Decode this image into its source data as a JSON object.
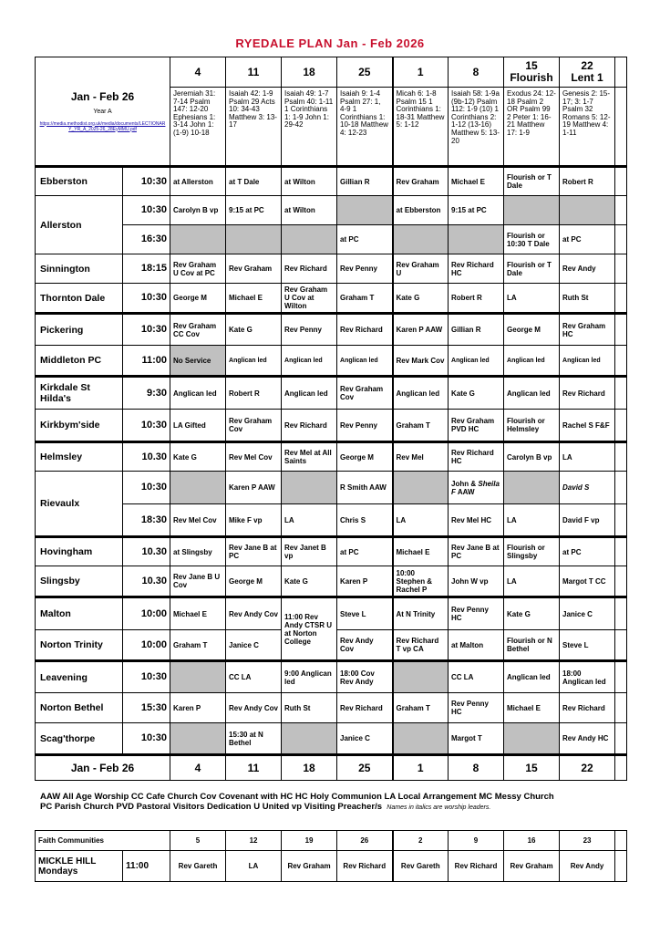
{
  "title": "RYEDALE PLAN Jan - Feb 2026",
  "period": {
    "label": "Jan - Feb 26",
    "year": "Year A",
    "link": "https://media.methodist.org.uk/media/documents/LECTIONARY_YR_A_2025-26_28EyMMU.pdf"
  },
  "dates": [
    {
      "day": "4",
      "sub": ""
    },
    {
      "day": "11",
      "sub": ""
    },
    {
      "day": "18",
      "sub": ""
    },
    {
      "day": "25",
      "sub": ""
    },
    {
      "day": "1",
      "sub": ""
    },
    {
      "day": "8",
      "sub": ""
    },
    {
      "day": "15",
      "sub": "Flourish"
    },
    {
      "day": "22",
      "sub": "Lent 1"
    }
  ],
  "lectionary": [
    "Jeremiah 31: 7-14 Psalm 147: 12-20 Ephesians 1: 3-14 John 1: (1-9) 10-18",
    "Isaiah 42: 1-9 Psalm 29 Acts 10: 34-43 Matthew 3: 13-17",
    "Isaiah 49: 1-7 Psalm 40: 1-11 1 Corinthians 1: 1-9 John 1: 29-42",
    "Isaiah 9: 1-4 Psalm 27: 1, 4-9 1 Corinthians 1: 10-18 Matthew 4: 12-23",
    "Micah 6: 1-8 Psalm 15 1 Corinthians 1: 18-31 Matthew 5: 1-12",
    "Isaiah 58: 1-9a (9b-12) Psalm 112: 1-9 (10) 1 Corinthians 2: 1-12 (13-16) Matthew 5: 13-20",
    "Exodus 24: 12-18 Psalm 2 OR Psalm 99 2 Peter 1: 16-21 Matthew 17: 1-9",
    "Genesis 2: 15-17; 3: 1-7 Psalm 32 Romans 5: 12-19 Matthew 4: 1-11"
  ],
  "rows": [
    {
      "church": "Ebberston",
      "time": "10:30",
      "cells": [
        "at Allerston",
        "at T Dale",
        "at Wilton",
        "Gillian R",
        "Rev Graham",
        "Michael E",
        "Flourish or T Dale",
        "Robert R"
      ]
    },
    {
      "church": "Allerston",
      "church_rowspan": 2,
      "time": "10:30",
      "cells": [
        "Carolyn B vp",
        "9:15 at PC",
        "at Wilton",
        {
          "t": "",
          "grey": true
        },
        "at Ebberston",
        "9:15 at PC",
        {
          "t": "",
          "grey": true
        },
        {
          "t": "",
          "grey": true
        }
      ]
    },
    {
      "church": null,
      "time": "16:30",
      "cells": [
        {
          "t": "",
          "grey": true
        },
        {
          "t": "",
          "grey": true
        },
        {
          "t": "",
          "grey": true
        },
        "at PC",
        {
          "t": "",
          "grey": true
        },
        {
          "t": "",
          "grey": true
        },
        "Flourish or 10:30 T Dale",
        "at PC"
      ]
    },
    {
      "church": "Sinnington",
      "time": "18:15",
      "cells": [
        "Rev Graham U Cov at PC",
        "Rev Graham",
        "Rev Richard",
        "Rev Penny",
        "Rev Graham U",
        "Rev Richard HC",
        "Flourish or T Dale",
        "Rev Andy"
      ]
    },
    {
      "church": "Thornton Dale",
      "time": "10:30",
      "cells": [
        "George M",
        "Michael E",
        "Rev Graham U Cov at Wilton",
        "Graham T",
        "Kate G",
        "Robert R",
        "LA",
        "Ruth St"
      ]
    },
    {
      "church": "Pickering",
      "time": "10:30",
      "cells": [
        "Rev Graham CC Cov",
        "Kate G",
        "Rev Penny",
        "Rev Richard",
        "Karen P AAW",
        "Gillian R",
        "George M",
        "Rev Graham HC"
      ]
    },
    {
      "church": "Middleton PC",
      "time": "11:00",
      "cells": [
        {
          "t": "No Service",
          "grey": true
        },
        {
          "t": "Anglican led",
          "small": true
        },
        {
          "t": "Anglican led",
          "small": true
        },
        {
          "t": "Anglican led",
          "small": true
        },
        "Rev Mark Cov",
        {
          "t": "Anglican led",
          "small": true
        },
        {
          "t": "Anglican led",
          "small": true
        },
        {
          "t": "Anglican led",
          "small": true
        }
      ]
    },
    {
      "church": "Kirkdale St Hilda's",
      "time": "9:30",
      "cells": [
        "Anglican led",
        "Robert R",
        "Anglican led",
        "Rev Graham Cov",
        "Anglican led",
        "Kate G",
        "Anglican led",
        "Rev Richard"
      ]
    },
    {
      "church": "Kirkbym'side",
      "time": "10:30",
      "cells": [
        "LA Gifted",
        "Rev Graham Cov",
        "Rev Richard",
        "Rev Penny",
        "Graham T",
        "Rev Graham PVD HC",
        "Flourish or Helmsley",
        "Rachel S F&F"
      ]
    },
    {
      "church": "Helmsley",
      "time": "10.30",
      "cells": [
        "Kate G",
        "Rev Mel Cov",
        "Rev Mel at All Saints",
        "George M",
        "Rev Mel",
        "Rev Richard HC",
        "Carolyn B vp",
        "LA"
      ]
    },
    {
      "church": "Rievaulx",
      "church_rowspan": 2,
      "time": "10:30",
      "cells": [
        {
          "t": "",
          "grey": true
        },
        "Karen P AAW",
        {
          "t": "",
          "grey": true
        },
        "R Smith AAW",
        {
          "t": "",
          "grey": true
        },
        {
          "t": "John & ",
          "i": "Sheila F",
          "t2": " AAW"
        },
        {
          "t": "",
          "grey": true
        },
        {
          "t": "David S",
          "italic": true
        }
      ]
    },
    {
      "church": null,
      "time": "18:30",
      "cells": [
        "Rev Mel Cov",
        "Mike F vp",
        "LA",
        "Chris S",
        "LA",
        "Rev Mel HC",
        "LA",
        "David F vp"
      ]
    },
    {
      "church": "Hovingham",
      "time": "10.30",
      "cells": [
        "at Slingsby",
        "Rev Jane B at PC",
        "Rev Janet B vp",
        "at PC",
        "Michael E",
        "Rev Jane B at PC",
        "Flourish or Slingsby",
        "at PC"
      ]
    },
    {
      "church": "Slingsby",
      "time": "10.30",
      "cells": [
        "Rev Jane B U Cov",
        "George M",
        "Kate G",
        "Karen P",
        "10:00 Stephen & Rachel P",
        "John W vp",
        "LA",
        "Margot T CC"
      ]
    },
    {
      "church": "Malton",
      "time": "10:00",
      "cells": [
        "Michael E",
        "Rev Andy Cov",
        {
          "t": "11:00 Rev Andy CTSR U at Norton College",
          "rowspan": 2
        },
        "Steve L",
        "At N Trinity",
        "Rev Penny HC",
        "Kate G",
        "Janice C"
      ]
    },
    {
      "church": "Norton Trinity",
      "time": "10:00",
      "cells": [
        "Graham T",
        "Janice C",
        null,
        "Rev Andy Cov",
        "Rev Richard T vp CA",
        "at Malton",
        "Flourish or N Bethel",
        "Steve L"
      ]
    },
    {
      "church": "Leavening",
      "time": "10:30",
      "cells": [
        {
          "t": "",
          "grey": true
        },
        "CC LA",
        "9:00 Anglican led",
        "18:00 Cov Rev Andy",
        {
          "t": "",
          "grey": true
        },
        "CC LA",
        "Anglican led",
        "18:00 Anglican led"
      ]
    },
    {
      "church": "Norton Bethel",
      "time": "15:30",
      "cells": [
        "Karen P",
        "Rev Andy Cov",
        "Ruth St",
        "Rev Richard",
        "Graham T",
        "Rev Penny HC",
        "Michael E",
        "Rev Richard"
      ]
    },
    {
      "church": "Scag'thorpe",
      "time": "10:30",
      "cells": [
        {
          "t": "",
          "grey": true
        },
        "15:30 at N Bethel",
        {
          "t": "",
          "grey": true
        },
        "Janice C",
        {
          "t": "",
          "grey": true
        },
        "Margot T",
        {
          "t": "",
          "grey": true
        },
        "Rev Andy HC"
      ]
    }
  ],
  "footer": {
    "label": "Jan - Feb 26",
    "days": [
      "4",
      "11",
      "18",
      "25",
      "1",
      "8",
      "15",
      "22"
    ]
  },
  "legend": {
    "line1": "AAW All Age Worship  CC Cafe Church  Cov Covenant with HC  HC Holy Communion  LA Local Arrangement  MC Messy Church",
    "line2": "PC Parish Church  PVD Pastoral Visitors Dedication  U United  vp Visiting Preacher/s",
    "note": "Names in italics are worship leaders."
  },
  "faith": {
    "header": "Faith Communities",
    "days": [
      "5",
      "12",
      "19",
      "26",
      "2",
      "9",
      "16",
      "23"
    ],
    "name": "MICKLE HILL",
    "sub": "Mondays",
    "time": "11:00",
    "cells": [
      "Rev Gareth",
      "LA",
      "Rev Graham",
      "Rev Richard",
      "Rev Gareth",
      "Rev Richard",
      "Rev Graham",
      "Rev Andy"
    ]
  },
  "colors": {
    "title": "#c8102e",
    "closed_cell": "#c0c0c0",
    "link": "#1a0dab"
  }
}
